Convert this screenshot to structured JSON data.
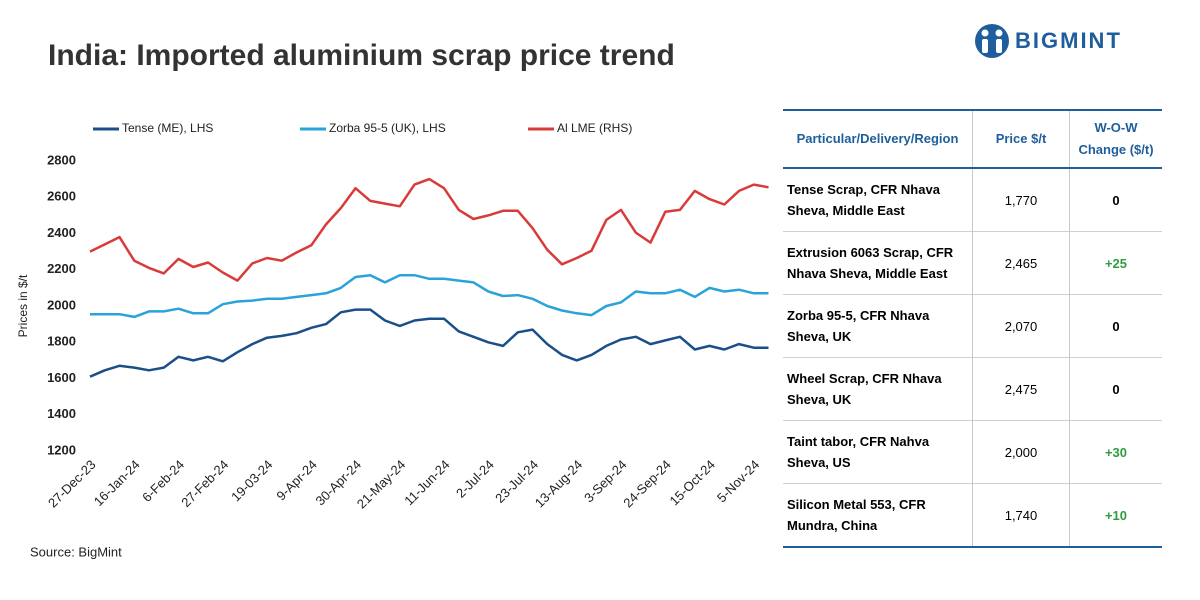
{
  "title": "India: Imported aluminium scrap price trend",
  "logo": "BIGMINT",
  "source": "Source: BigMint",
  "chart_data": {
    "type": "line",
    "y_label": "Prices in $/t",
    "categories": [
      "27-Dec-23",
      null,
      null,
      "16-Jan-24",
      null,
      null,
      "6-Feb-24",
      null,
      null,
      "27-Feb-24",
      null,
      null,
      "19-03-24",
      null,
      null,
      "9-Apr-24",
      null,
      null,
      "30-Apr-24",
      null,
      null,
      "21-May-24",
      null,
      null,
      "11-Jun-24",
      null,
      null,
      "2-Jul-24",
      null,
      null,
      "23-Jul-24",
      null,
      null,
      "13-Aug-24",
      null,
      null,
      "3-Sep-24",
      null,
      null,
      "24-Sep-24",
      null,
      null,
      "15-Oct-24",
      null,
      null,
      "5-Nov-24",
      null
    ],
    "series": [
      {
        "name": "Tense (ME), LHS",
        "color": "#1a4f8a",
        "values": [
          1610,
          1645,
          1670,
          1660,
          1645,
          1660,
          1720,
          1700,
          1720,
          1695,
          1745,
          1790,
          1825,
          1835,
          1850,
          1880,
          1900,
          1965,
          1980,
          1980,
          1920,
          1890,
          1920,
          1930,
          1930,
          1860,
          1830,
          1800,
          1780,
          1855,
          1870,
          1790,
          1730,
          1700,
          1730,
          1780,
          1815,
          1830,
          1790,
          1810,
          1830,
          1760,
          1780,
          1760,
          1790,
          1770,
          1770
        ]
      },
      {
        "name": "Zorba 95-5 (UK), LHS",
        "color": "#2aa3d8",
        "values": [
          1955,
          1955,
          1955,
          1940,
          1970,
          1970,
          1985,
          1960,
          1960,
          2010,
          2025,
          2030,
          2040,
          2040,
          2050,
          2060,
          2070,
          2100,
          2160,
          2170,
          2130,
          2170,
          2170,
          2150,
          2150,
          2140,
          2130,
          2080,
          2055,
          2060,
          2040,
          2000,
          1975,
          1960,
          1950,
          2000,
          2020,
          2080,
          2070,
          2070,
          2090,
          2050,
          2100,
          2080,
          2090,
          2070,
          2070
        ]
      },
      {
        "name": "Al LME (RHS)",
        "color": "#d93a3a",
        "values": [
          2300,
          2340,
          2380,
          2250,
          2210,
          2180,
          2260,
          2215,
          2240,
          2185,
          2140,
          2235,
          2265,
          2250,
          2295,
          2335,
          2450,
          2540,
          2650,
          2580,
          2565,
          2550,
          2670,
          2700,
          2650,
          2530,
          2480,
          2500,
          2525,
          2525,
          2430,
          2310,
          2230,
          2265,
          2305,
          2475,
          2530,
          2405,
          2350,
          2520,
          2530,
          2635,
          2590,
          2560,
          2635,
          2670,
          2655
        ]
      }
    ],
    "ylim": [
      1200,
      2800
    ],
    "yticks": [
      1200,
      1400,
      1600,
      1800,
      2000,
      2200,
      2400,
      2600,
      2800
    ],
    "grid": false
  },
  "table": {
    "header": [
      "Particular/Delivery/Region",
      "Price $/t",
      "W-O-W Change ($/t)"
    ],
    "rows": [
      [
        "Tense Scrap, CFR Nhava Sheva, Middle East",
        "1,770",
        "0"
      ],
      [
        "Extrusion 6063 Scrap, CFR Nhava Sheva, Middle East",
        "2,465",
        "+25"
      ],
      [
        "Zorba 95-5, CFR Nhava Sheva, UK",
        "2,070",
        "0"
      ],
      [
        "Wheel Scrap, CFR Nhava Sheva, UK",
        "2,475",
        "0"
      ],
      [
        "Taint tabor, CFR Nahva Sheva, US",
        "2,000",
        "+30"
      ],
      [
        "Silicon Metal 553, CFR Mundra, China",
        "1,740",
        "+10"
      ]
    ]
  }
}
